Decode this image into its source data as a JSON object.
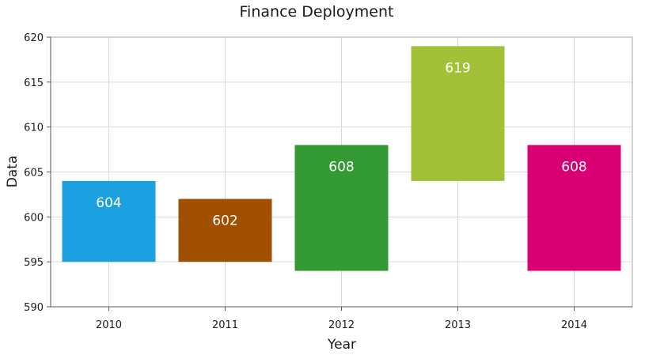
{
  "chart_data": {
    "type": "bar",
    "subtype": "range",
    "title": "Finance Deployment",
    "xlabel": "Year",
    "ylabel": "Data",
    "categories": [
      "2010",
      "2011",
      "2012",
      "2013",
      "2014"
    ],
    "low": [
      595,
      595,
      594,
      604,
      594
    ],
    "high": [
      604,
      602,
      608,
      619,
      608
    ],
    "data_labels": [
      "604",
      "602",
      "608",
      "619",
      "608"
    ],
    "colors": [
      "#1ba1e2",
      "#a05000",
      "#339933",
      "#a2c139",
      "#d80073"
    ],
    "ylim": [
      590,
      620
    ],
    "yticks": [
      590,
      595,
      600,
      605,
      610,
      615,
      620
    ],
    "grid": true,
    "legend": "none"
  }
}
